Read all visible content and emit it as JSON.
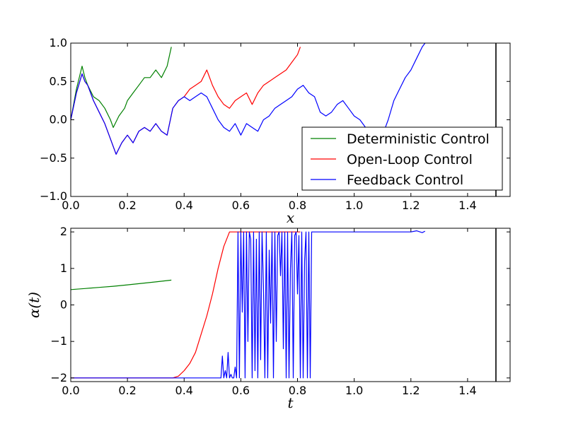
{
  "colors": {
    "deterministic": "#008000",
    "open_loop": "#ff0000",
    "feedback": "#0000ff",
    "axes": "#000000",
    "background": "#ffffff"
  },
  "chart_data": [
    {
      "id": "state-chart",
      "type": "line",
      "title": "",
      "xlabel": "x",
      "ylabel": "",
      "xlim": [
        0.0,
        1.55
      ],
      "ylim": [
        -1.0,
        1.0
      ],
      "xticks": [
        "0.0",
        "0.2",
        "0.4",
        "0.6",
        "0.8",
        "1.0",
        "1.2",
        "1.4"
      ],
      "xtick_values": [
        0.0,
        0.2,
        0.4,
        0.6,
        0.8,
        1.0,
        1.2,
        1.4
      ],
      "yticks": [
        "−1.0",
        "−0.5",
        "0.0",
        "0.5",
        "1.0"
      ],
      "ytick_values": [
        -1.0,
        -0.5,
        0.0,
        0.5,
        1.0
      ],
      "vline_x": 1.5,
      "grid": false,
      "legend": {
        "placement": "lower-right",
        "entries": [
          "Deterministic Control",
          "Open-Loop Control",
          "Feedback Control"
        ]
      },
      "series": [
        {
          "name": "Deterministic Control",
          "color_key": "deterministic",
          "x": [
            0.0,
            0.02,
            0.04,
            0.05,
            0.06,
            0.08,
            0.1,
            0.12,
            0.14,
            0.15,
            0.17,
            0.19,
            0.2,
            0.22,
            0.24,
            0.26,
            0.28,
            0.3,
            0.32,
            0.34,
            0.355
          ],
          "y": [
            0.0,
            0.4,
            0.7,
            0.55,
            0.45,
            0.3,
            0.25,
            0.15,
            0.0,
            -0.1,
            0.05,
            0.15,
            0.25,
            0.35,
            0.45,
            0.55,
            0.55,
            0.65,
            0.55,
            0.7,
            0.95
          ]
        },
        {
          "name": "Open-Loop Control",
          "color_key": "open_loop",
          "x": [
            0.0,
            0.02,
            0.04,
            0.05,
            0.06,
            0.08,
            0.1,
            0.12,
            0.14,
            0.16,
            0.18,
            0.2,
            0.22,
            0.24,
            0.26,
            0.28,
            0.3,
            0.32,
            0.34,
            0.36,
            0.38,
            0.4,
            0.42,
            0.44,
            0.46,
            0.48,
            0.5,
            0.52,
            0.54,
            0.56,
            0.58,
            0.6,
            0.62,
            0.64,
            0.66,
            0.68,
            0.7,
            0.72,
            0.74,
            0.76,
            0.78,
            0.8,
            0.81
          ],
          "y": [
            0.0,
            0.35,
            0.6,
            0.5,
            0.45,
            0.25,
            0.1,
            -0.05,
            -0.25,
            -0.45,
            -0.3,
            -0.2,
            -0.3,
            -0.15,
            -0.1,
            -0.15,
            -0.05,
            -0.15,
            -0.2,
            0.15,
            0.25,
            0.3,
            0.4,
            0.45,
            0.5,
            0.65,
            0.45,
            0.3,
            0.2,
            0.15,
            0.25,
            0.3,
            0.35,
            0.2,
            0.35,
            0.45,
            0.5,
            0.55,
            0.6,
            0.65,
            0.75,
            0.85,
            0.95
          ]
        },
        {
          "name": "Feedback Control",
          "color_key": "feedback",
          "x": [
            0.0,
            0.02,
            0.04,
            0.05,
            0.06,
            0.08,
            0.1,
            0.12,
            0.14,
            0.16,
            0.18,
            0.2,
            0.22,
            0.24,
            0.26,
            0.28,
            0.3,
            0.32,
            0.34,
            0.36,
            0.38,
            0.4,
            0.42,
            0.44,
            0.46,
            0.48,
            0.5,
            0.52,
            0.54,
            0.56,
            0.58,
            0.6,
            0.62,
            0.64,
            0.66,
            0.68,
            0.7,
            0.72,
            0.74,
            0.76,
            0.78,
            0.8,
            0.82,
            0.84,
            0.86,
            0.88,
            0.9,
            0.92,
            0.94,
            0.96,
            0.98,
            1.0,
            1.02,
            1.04,
            1.06,
            1.08,
            1.1,
            1.12,
            1.14,
            1.16,
            1.18,
            1.2,
            1.22,
            1.24,
            1.25
          ],
          "y": [
            0.0,
            0.35,
            0.6,
            0.5,
            0.45,
            0.25,
            0.1,
            -0.05,
            -0.25,
            -0.45,
            -0.3,
            -0.2,
            -0.3,
            -0.15,
            -0.1,
            -0.15,
            -0.05,
            -0.15,
            -0.2,
            0.15,
            0.25,
            0.3,
            0.25,
            0.3,
            0.35,
            0.3,
            0.15,
            0.0,
            -0.1,
            -0.15,
            -0.05,
            -0.2,
            -0.05,
            -0.1,
            -0.15,
            0.0,
            0.05,
            0.15,
            0.2,
            0.25,
            0.3,
            0.4,
            0.45,
            0.35,
            0.3,
            0.1,
            0.05,
            0.1,
            0.2,
            0.25,
            0.15,
            0.05,
            0.0,
            -0.1,
            -0.2,
            -0.25,
            -0.2,
            0.0,
            0.25,
            0.4,
            0.55,
            0.65,
            0.8,
            0.95,
            1.0
          ]
        }
      ]
    },
    {
      "id": "control-chart",
      "type": "line",
      "title": "",
      "xlabel": "t",
      "ylabel": "α(t)",
      "xlim": [
        0.0,
        1.55
      ],
      "ylim": [
        -2.1,
        2.1
      ],
      "xticks": [
        "0.0",
        "0.2",
        "0.4",
        "0.6",
        "0.8",
        "1.0",
        "1.2",
        "1.4"
      ],
      "xtick_values": [
        0.0,
        0.2,
        0.4,
        0.6,
        0.8,
        1.0,
        1.2,
        1.4
      ],
      "yticks": [
        "−2",
        "−1",
        "0",
        "1",
        "2"
      ],
      "ytick_values": [
        -2,
        -1,
        0,
        1,
        2
      ],
      "vline_x": 1.5,
      "grid": false,
      "series": [
        {
          "name": "Deterministic Control",
          "color_key": "deterministic",
          "x": [
            0.0,
            0.05,
            0.1,
            0.15,
            0.2,
            0.25,
            0.3,
            0.355
          ],
          "y": [
            0.42,
            0.45,
            0.48,
            0.51,
            0.55,
            0.59,
            0.63,
            0.68
          ]
        },
        {
          "name": "Open-Loop Control",
          "color_key": "open_loop",
          "x": [
            0.0,
            0.36,
            0.38,
            0.4,
            0.42,
            0.44,
            0.46,
            0.48,
            0.5,
            0.52,
            0.54,
            0.56,
            0.81
          ],
          "y": [
            -2.0,
            -2.0,
            -1.95,
            -1.8,
            -1.6,
            -1.3,
            -0.8,
            -0.3,
            0.3,
            1.0,
            1.6,
            2.0,
            2.0
          ]
        },
        {
          "name": "Feedback Control",
          "color_key": "feedback",
          "x": [
            0.0,
            0.53,
            0.535,
            0.54,
            0.545,
            0.55,
            0.555,
            0.56,
            0.565,
            0.57,
            0.575,
            0.58,
            0.585,
            0.59,
            0.595,
            0.6,
            0.605,
            0.61,
            0.615,
            0.62,
            0.625,
            0.63,
            0.635,
            0.64,
            0.645,
            0.65,
            0.655,
            0.66,
            0.665,
            0.67,
            0.675,
            0.68,
            0.685,
            0.69,
            0.695,
            0.7,
            0.705,
            0.71,
            0.715,
            0.72,
            0.725,
            0.73,
            0.735,
            0.74,
            0.745,
            0.75,
            0.755,
            0.76,
            0.765,
            0.77,
            0.775,
            0.78,
            0.785,
            0.79,
            0.795,
            0.8,
            0.805,
            0.81,
            0.815,
            0.82,
            0.825,
            0.83,
            0.835,
            0.84,
            0.845,
            0.85,
            0.855,
            0.86,
            0.9,
            1.0,
            1.1,
            1.2,
            1.22,
            1.24,
            1.25
          ],
          "y": [
            -2.0,
            -2.0,
            -1.4,
            -2.0,
            -1.8,
            -2.0,
            -1.3,
            -2.0,
            -1.9,
            -2.0,
            -2.0,
            -1.7,
            -2.0,
            2.0,
            -2.0,
            2.0,
            -0.2,
            2.0,
            -2.0,
            2.0,
            -1.0,
            2.0,
            1.8,
            -2.0,
            2.0,
            -1.8,
            1.8,
            -2.0,
            2.0,
            -1.5,
            2.0,
            0.5,
            -2.0,
            2.0,
            -2.0,
            1.5,
            -0.5,
            2.0,
            -2.0,
            2.0,
            -1.0,
            1.9,
            2.0,
            0.8,
            2.0,
            -1.2,
            2.0,
            -2.0,
            2.0,
            -2.0,
            1.0,
            2.0,
            -2.0,
            1.9,
            2.0,
            0.3,
            1.9,
            -2.0,
            2.0,
            -2.0,
            1.2,
            2.0,
            -2.0,
            2.0,
            -2.0,
            2.0,
            2.0,
            2.0,
            2.0,
            2.0,
            2.0,
            2.0,
            2.03,
            1.98,
            2.02
          ]
        }
      ]
    }
  ]
}
